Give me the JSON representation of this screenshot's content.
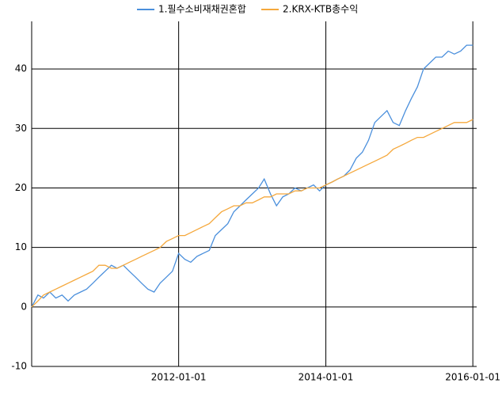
{
  "chart_data": {
    "type": "line",
    "x": [
      "2010-01-01",
      "2010-02-01",
      "2010-03-01",
      "2010-04-01",
      "2010-05-01",
      "2010-06-01",
      "2010-07-01",
      "2010-08-01",
      "2010-09-01",
      "2010-10-01",
      "2010-11-01",
      "2010-12-01",
      "2011-01-01",
      "2011-02-01",
      "2011-03-01",
      "2011-04-01",
      "2011-05-01",
      "2011-06-01",
      "2011-07-01",
      "2011-08-01",
      "2011-09-01",
      "2011-10-01",
      "2011-11-01",
      "2011-12-01",
      "2012-01-01",
      "2012-02-01",
      "2012-03-01",
      "2012-04-01",
      "2012-05-01",
      "2012-06-01",
      "2012-07-01",
      "2012-08-01",
      "2012-09-01",
      "2012-10-01",
      "2012-11-01",
      "2012-12-01",
      "2013-01-01",
      "2013-02-01",
      "2013-03-01",
      "2013-04-01",
      "2013-05-01",
      "2013-06-01",
      "2013-07-01",
      "2013-08-01",
      "2013-09-01",
      "2013-10-01",
      "2013-11-01",
      "2013-12-01",
      "2014-01-01",
      "2014-02-01",
      "2014-03-01",
      "2014-04-01",
      "2014-05-01",
      "2014-06-01",
      "2014-07-01",
      "2014-08-01",
      "2014-09-01",
      "2014-10-01",
      "2014-11-01",
      "2014-12-01",
      "2015-01-01",
      "2015-02-01",
      "2015-03-01",
      "2015-04-01",
      "2015-05-01",
      "2015-06-01",
      "2015-07-01",
      "2015-08-01",
      "2015-09-01",
      "2015-10-01",
      "2015-11-01",
      "2015-12-01",
      "2016-01-01"
    ],
    "series": [
      {
        "name": "1.필수소비재채권혼합",
        "color": "#4a8fdc",
        "values": [
          0,
          2,
          1.5,
          2.5,
          1.5,
          2,
          1,
          2,
          2.5,
          3,
          4,
          5,
          6,
          7,
          6.5,
          7,
          6,
          5,
          4,
          3,
          2.5,
          4,
          5,
          6,
          9,
          8,
          7.5,
          8.5,
          9,
          9.5,
          12,
          13,
          14,
          16,
          17,
          18,
          19,
          20,
          21.5,
          19,
          17,
          18.5,
          19,
          20,
          19.5,
          20,
          20.5,
          19.5,
          20.5,
          21,
          21.5,
          22,
          23,
          25,
          26,
          28,
          31,
          32,
          33,
          31,
          30.5,
          33,
          35,
          37,
          40,
          41,
          42,
          42,
          43,
          42.5,
          43,
          44,
          44
        ]
      },
      {
        "name": "2.KRX-KTB총수익",
        "color": "#f5a83c",
        "values": [
          0,
          1,
          2,
          2.5,
          3,
          3.5,
          4,
          4.5,
          5,
          5.5,
          6,
          7,
          7,
          6.5,
          6.5,
          7,
          7.5,
          8,
          8.5,
          9,
          9.5,
          10,
          11,
          11.5,
          12,
          12,
          12.5,
          13,
          13.5,
          14,
          15,
          16,
          16.5,
          17,
          17,
          17.5,
          17.5,
          18,
          18.5,
          18.5,
          19,
          19,
          19,
          19.5,
          19.5,
          20,
          20,
          20,
          20.5,
          21,
          21.5,
          22,
          22.5,
          23,
          23.5,
          24,
          24.5,
          25,
          25.5,
          26.5,
          27,
          27.5,
          28,
          28.5,
          28.5,
          29,
          29.5,
          30,
          30.5,
          31,
          31,
          31,
          31.5
        ]
      }
    ],
    "xlim": [
      "2010-01-01",
      "2016-01-20"
    ],
    "xticks": [
      "2012-01-01",
      "2014-01-01",
      "2016-01-01"
    ],
    "ylim": [
      -10,
      48
    ],
    "yticks": [
      -10,
      0,
      10,
      20,
      30,
      40
    ],
    "grid": true
  }
}
